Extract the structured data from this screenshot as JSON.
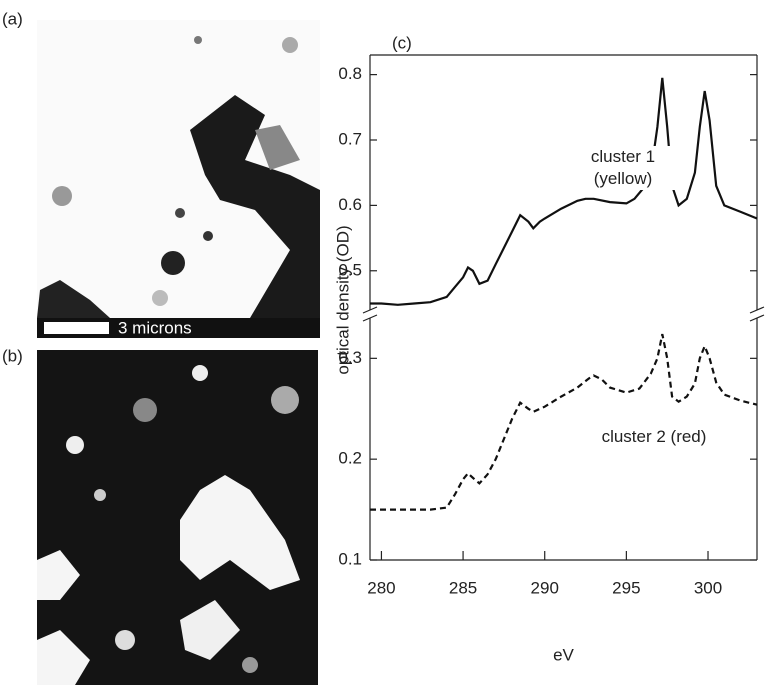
{
  "panels": [
    {
      "label": "(a)",
      "scale_bar": "3 microns"
    },
    {
      "label": "(b)"
    }
  ],
  "chart_data": [
    {
      "type": "line",
      "panel_label": "(c)",
      "y_label": "optical density (OD)",
      "xlim": [
        279.3,
        303
      ],
      "ylim": [
        0.44,
        0.83
      ],
      "yticks": [
        0.5,
        0.6,
        0.7,
        0.8
      ],
      "x": [
        279.3,
        280,
        281,
        282,
        283,
        284,
        284.5,
        285,
        285.3,
        285.6,
        286,
        286.5,
        287,
        287.5,
        288,
        288.5,
        289,
        289.3,
        289.7,
        290,
        291,
        292,
        292.5,
        293,
        294,
        295,
        295.5,
        296,
        296.5,
        296.9,
        297.2,
        297.5,
        297.8,
        298.2,
        298.7,
        299.2,
        299.5,
        299.8,
        300.1,
        300.5,
        301,
        302,
        303
      ],
      "series": [
        {
          "name": "cluster 1 (yellow)",
          "color": "#111111",
          "line_style": "solid",
          "values": [
            0.45,
            0.45,
            0.448,
            0.45,
            0.452,
            0.46,
            0.475,
            0.49,
            0.505,
            0.5,
            0.48,
            0.485,
            0.51,
            0.535,
            0.56,
            0.585,
            0.575,
            0.565,
            0.575,
            0.58,
            0.595,
            0.607,
            0.61,
            0.61,
            0.605,
            0.603,
            0.61,
            0.625,
            0.65,
            0.72,
            0.795,
            0.72,
            0.63,
            0.6,
            0.61,
            0.65,
            0.72,
            0.775,
            0.73,
            0.63,
            0.6,
            0.59,
            0.58
          ]
        }
      ]
    },
    {
      "type": "line",
      "x_label": "eV",
      "xlim": [
        279.3,
        303
      ],
      "xticks": [
        280,
        285,
        290,
        295,
        300
      ],
      "ylim": [
        0.1,
        0.34
      ],
      "yticks": [
        0.1,
        0.2,
        0.3
      ],
      "x": [
        279.3,
        283,
        284,
        284.5,
        285,
        285.3,
        285.7,
        286,
        286.5,
        287,
        287.5,
        288,
        288.5,
        289,
        289.3,
        289.7,
        290,
        291,
        292,
        292.7,
        293,
        293.5,
        294,
        295,
        295.8,
        296.5,
        296.9,
        297.2,
        297.5,
        297.8,
        298.2,
        298.7,
        299.2,
        299.5,
        299.8,
        300.1,
        300.5,
        301,
        302,
        303
      ],
      "series": [
        {
          "name": "cluster 2 (red)",
          "color": "#111111",
          "line_style": "dashed",
          "values": [
            0.15,
            0.15,
            0.152,
            0.165,
            0.18,
            0.186,
            0.18,
            0.176,
            0.185,
            0.2,
            0.22,
            0.24,
            0.256,
            0.25,
            0.247,
            0.25,
            0.252,
            0.262,
            0.271,
            0.28,
            0.283,
            0.279,
            0.271,
            0.266,
            0.27,
            0.285,
            0.3,
            0.324,
            0.3,
            0.262,
            0.257,
            0.262,
            0.275,
            0.3,
            0.312,
            0.3,
            0.276,
            0.264,
            0.258,
            0.254
          ]
        }
      ]
    }
  ]
}
